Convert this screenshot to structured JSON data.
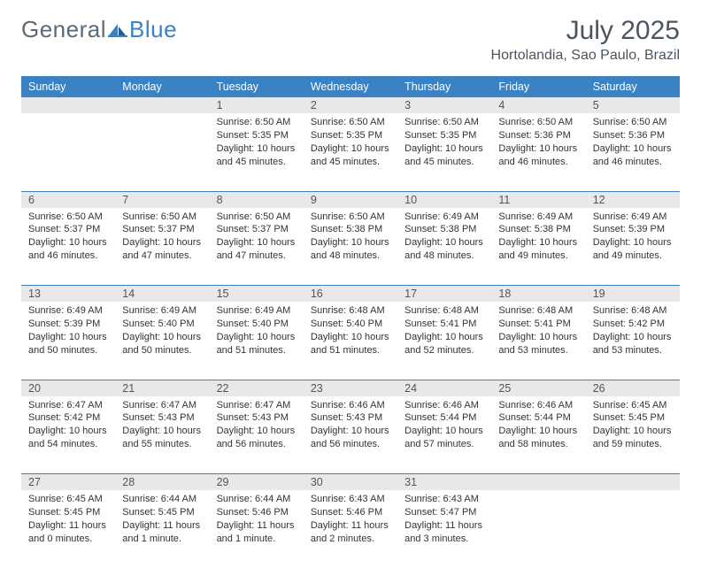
{
  "logo": {
    "text1": "General",
    "text2": "Blue"
  },
  "title": "July 2025",
  "location": "Hortolandia, Sao Paulo, Brazil",
  "colors": {
    "header_bg": "#3b82c4",
    "header_text": "#ffffff",
    "daynum_bg": "#e8e8e8",
    "border": "#3b82c4",
    "title_color": "#4a5560",
    "text_color": "#333333"
  },
  "weekdays": [
    "Sunday",
    "Monday",
    "Tuesday",
    "Wednesday",
    "Thursday",
    "Friday",
    "Saturday"
  ],
  "weeks": [
    [
      null,
      null,
      {
        "n": "1",
        "sunrise": "Sunrise: 6:50 AM",
        "sunset": "Sunset: 5:35 PM",
        "day1": "Daylight: 10 hours",
        "day2": "and 45 minutes."
      },
      {
        "n": "2",
        "sunrise": "Sunrise: 6:50 AM",
        "sunset": "Sunset: 5:35 PM",
        "day1": "Daylight: 10 hours",
        "day2": "and 45 minutes."
      },
      {
        "n": "3",
        "sunrise": "Sunrise: 6:50 AM",
        "sunset": "Sunset: 5:35 PM",
        "day1": "Daylight: 10 hours",
        "day2": "and 45 minutes."
      },
      {
        "n": "4",
        "sunrise": "Sunrise: 6:50 AM",
        "sunset": "Sunset: 5:36 PM",
        "day1": "Daylight: 10 hours",
        "day2": "and 46 minutes."
      },
      {
        "n": "5",
        "sunrise": "Sunrise: 6:50 AM",
        "sunset": "Sunset: 5:36 PM",
        "day1": "Daylight: 10 hours",
        "day2": "and 46 minutes."
      }
    ],
    [
      {
        "n": "6",
        "sunrise": "Sunrise: 6:50 AM",
        "sunset": "Sunset: 5:37 PM",
        "day1": "Daylight: 10 hours",
        "day2": "and 46 minutes."
      },
      {
        "n": "7",
        "sunrise": "Sunrise: 6:50 AM",
        "sunset": "Sunset: 5:37 PM",
        "day1": "Daylight: 10 hours",
        "day2": "and 47 minutes."
      },
      {
        "n": "8",
        "sunrise": "Sunrise: 6:50 AM",
        "sunset": "Sunset: 5:37 PM",
        "day1": "Daylight: 10 hours",
        "day2": "and 47 minutes."
      },
      {
        "n": "9",
        "sunrise": "Sunrise: 6:50 AM",
        "sunset": "Sunset: 5:38 PM",
        "day1": "Daylight: 10 hours",
        "day2": "and 48 minutes."
      },
      {
        "n": "10",
        "sunrise": "Sunrise: 6:49 AM",
        "sunset": "Sunset: 5:38 PM",
        "day1": "Daylight: 10 hours",
        "day2": "and 48 minutes."
      },
      {
        "n": "11",
        "sunrise": "Sunrise: 6:49 AM",
        "sunset": "Sunset: 5:38 PM",
        "day1": "Daylight: 10 hours",
        "day2": "and 49 minutes."
      },
      {
        "n": "12",
        "sunrise": "Sunrise: 6:49 AM",
        "sunset": "Sunset: 5:39 PM",
        "day1": "Daylight: 10 hours",
        "day2": "and 49 minutes."
      }
    ],
    [
      {
        "n": "13",
        "sunrise": "Sunrise: 6:49 AM",
        "sunset": "Sunset: 5:39 PM",
        "day1": "Daylight: 10 hours",
        "day2": "and 50 minutes."
      },
      {
        "n": "14",
        "sunrise": "Sunrise: 6:49 AM",
        "sunset": "Sunset: 5:40 PM",
        "day1": "Daylight: 10 hours",
        "day2": "and 50 minutes."
      },
      {
        "n": "15",
        "sunrise": "Sunrise: 6:49 AM",
        "sunset": "Sunset: 5:40 PM",
        "day1": "Daylight: 10 hours",
        "day2": "and 51 minutes."
      },
      {
        "n": "16",
        "sunrise": "Sunrise: 6:48 AM",
        "sunset": "Sunset: 5:40 PM",
        "day1": "Daylight: 10 hours",
        "day2": "and 51 minutes."
      },
      {
        "n": "17",
        "sunrise": "Sunrise: 6:48 AM",
        "sunset": "Sunset: 5:41 PM",
        "day1": "Daylight: 10 hours",
        "day2": "and 52 minutes."
      },
      {
        "n": "18",
        "sunrise": "Sunrise: 6:48 AM",
        "sunset": "Sunset: 5:41 PM",
        "day1": "Daylight: 10 hours",
        "day2": "and 53 minutes."
      },
      {
        "n": "19",
        "sunrise": "Sunrise: 6:48 AM",
        "sunset": "Sunset: 5:42 PM",
        "day1": "Daylight: 10 hours",
        "day2": "and 53 minutes."
      }
    ],
    [
      {
        "n": "20",
        "sunrise": "Sunrise: 6:47 AM",
        "sunset": "Sunset: 5:42 PM",
        "day1": "Daylight: 10 hours",
        "day2": "and 54 minutes."
      },
      {
        "n": "21",
        "sunrise": "Sunrise: 6:47 AM",
        "sunset": "Sunset: 5:43 PM",
        "day1": "Daylight: 10 hours",
        "day2": "and 55 minutes."
      },
      {
        "n": "22",
        "sunrise": "Sunrise: 6:47 AM",
        "sunset": "Sunset: 5:43 PM",
        "day1": "Daylight: 10 hours",
        "day2": "and 56 minutes."
      },
      {
        "n": "23",
        "sunrise": "Sunrise: 6:46 AM",
        "sunset": "Sunset: 5:43 PM",
        "day1": "Daylight: 10 hours",
        "day2": "and 56 minutes."
      },
      {
        "n": "24",
        "sunrise": "Sunrise: 6:46 AM",
        "sunset": "Sunset: 5:44 PM",
        "day1": "Daylight: 10 hours",
        "day2": "and 57 minutes."
      },
      {
        "n": "25",
        "sunrise": "Sunrise: 6:46 AM",
        "sunset": "Sunset: 5:44 PM",
        "day1": "Daylight: 10 hours",
        "day2": "and 58 minutes."
      },
      {
        "n": "26",
        "sunrise": "Sunrise: 6:45 AM",
        "sunset": "Sunset: 5:45 PM",
        "day1": "Daylight: 10 hours",
        "day2": "and 59 minutes."
      }
    ],
    [
      {
        "n": "27",
        "sunrise": "Sunrise: 6:45 AM",
        "sunset": "Sunset: 5:45 PM",
        "day1": "Daylight: 11 hours",
        "day2": "and 0 minutes."
      },
      {
        "n": "28",
        "sunrise": "Sunrise: 6:44 AM",
        "sunset": "Sunset: 5:45 PM",
        "day1": "Daylight: 11 hours",
        "day2": "and 1 minute."
      },
      {
        "n": "29",
        "sunrise": "Sunrise: 6:44 AM",
        "sunset": "Sunset: 5:46 PM",
        "day1": "Daylight: 11 hours",
        "day2": "and 1 minute."
      },
      {
        "n": "30",
        "sunrise": "Sunrise: 6:43 AM",
        "sunset": "Sunset: 5:46 PM",
        "day1": "Daylight: 11 hours",
        "day2": "and 2 minutes."
      },
      {
        "n": "31",
        "sunrise": "Sunrise: 6:43 AM",
        "sunset": "Sunset: 5:47 PM",
        "day1": "Daylight: 11 hours",
        "day2": "and 3 minutes."
      },
      null,
      null
    ]
  ]
}
